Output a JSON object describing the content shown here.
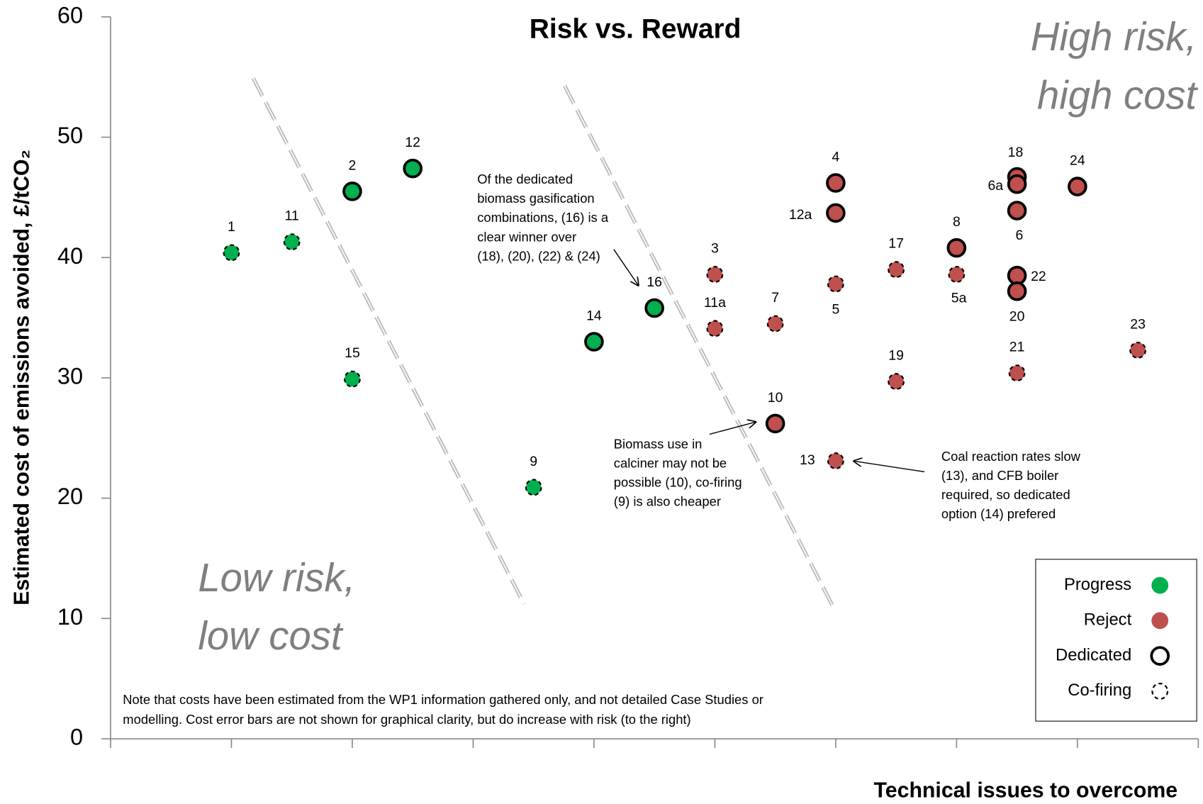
{
  "chart_data": {
    "type": "scatter",
    "title": "Risk vs. Reward",
    "xlabel": "Technical issues to overcome",
    "ylabel": "Estimated cost of emissions avoided, £/tCO₂",
    "xlim": [
      0,
      9
    ],
    "xticks": [
      0,
      1,
      2,
      3,
      4,
      5,
      6,
      7,
      8,
      9
    ],
    "ylim": [
      0,
      60
    ],
    "yticks": [
      0,
      10,
      20,
      30,
      40,
      50,
      60
    ],
    "series": [
      {
        "name": "Progress",
        "color": "#00b050",
        "labels": [
          "1",
          "11",
          "2",
          "12",
          "15",
          "9",
          "14",
          "16"
        ],
        "x": [
          1,
          1.5,
          2,
          2.5,
          2,
          3.5,
          4,
          4.5
        ],
        "values": [
          40.4,
          41.3,
          45.5,
          47.4,
          29.9,
          20.9,
          33.0,
          35.8
        ],
        "outline": [
          "dashed",
          "dashed",
          "solid",
          "solid",
          "dashed",
          "dashed",
          "solid",
          "solid"
        ]
      },
      {
        "name": "Reject",
        "color": "#c0504d",
        "labels": [
          "3",
          "11a",
          "7",
          "10",
          "4",
          "12a",
          "5",
          "13",
          "17",
          "19",
          "8",
          "5a",
          "18",
          "6a",
          "6",
          "22",
          "20",
          "21",
          "24",
          "23"
        ],
        "x": [
          5,
          5,
          5.5,
          5.5,
          6,
          6,
          6,
          6,
          6.5,
          6.5,
          7,
          7,
          7.5,
          7.5,
          7.5,
          7.5,
          7.5,
          7.5,
          8,
          8.5
        ],
        "values": [
          38.6,
          34.1,
          34.5,
          26.2,
          46.2,
          43.7,
          37.8,
          23.1,
          39.0,
          29.7,
          40.8,
          38.6,
          46.7,
          46.1,
          43.9,
          38.5,
          37.2,
          30.4,
          45.9,
          32.3
        ],
        "outline": [
          "dashed",
          "dashed",
          "dashed",
          "solid",
          "solid",
          "solid",
          "dashed",
          "dashed",
          "dashed",
          "dashed",
          "solid",
          "dashed",
          "solid",
          "solid",
          "solid",
          "solid",
          "solid",
          "dashed",
          "solid",
          "dashed"
        ]
      }
    ],
    "outline_legend": [
      {
        "name": "Dedicated",
        "style": "solid"
      },
      {
        "name": "Co-firing",
        "style": "dashed"
      }
    ],
    "annotations": [
      {
        "lines": [
          "Of the dedicated",
          "biomass gasification",
          "combinations, (16) is a",
          "clear winner over",
          "(18), (20), (22) & (24)"
        ]
      },
      {
        "lines": [
          "Biomass use in",
          "calciner may not be",
          "possible (10), co-firing",
          "(9) is also cheaper"
        ]
      },
      {
        "lines": [
          "Coal reaction rates slow",
          "(13), and CFB boiler",
          "required, so dedicated",
          "option (14) prefered"
        ]
      }
    ],
    "quadrants": [
      {
        "lines": [
          "High risk,",
          "high cost"
        ]
      },
      {
        "lines": [
          "Low risk,",
          "low cost"
        ]
      }
    ],
    "note": [
      "Note that costs have been estimated from the WP1 information gathered only, and not detailed Case Studies or",
      "modelling. Cost error bars are not shown for graphical clarity, but do increase with risk (to the right)"
    ]
  }
}
